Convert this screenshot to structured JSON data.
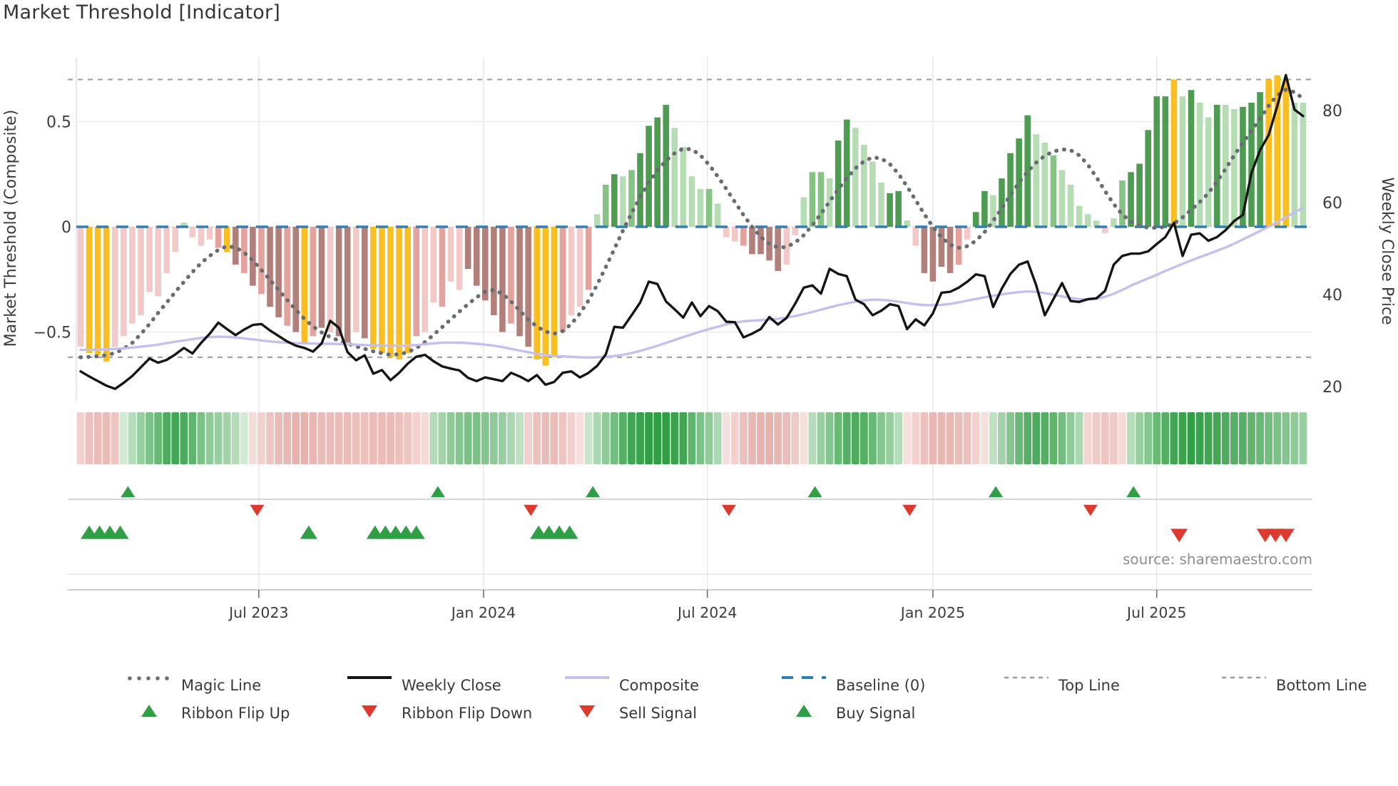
{
  "title": "Market Threshold [Indicator]",
  "source_text": "source: sharemaestro.com",
  "left_axis": {
    "label": "Market Threshold (Composite)",
    "tick_labels": [
      "0.5",
      "0",
      "−0.5"
    ],
    "tick_values": [
      0.5,
      0,
      -0.5
    ]
  },
  "right_axis": {
    "label": "Weekly Close Price",
    "tick_labels": [
      "80",
      "60",
      "40",
      "20"
    ],
    "tick_values": [
      80,
      60,
      40,
      20
    ]
  },
  "x_axis": {
    "ticks": [
      {
        "label": "Jul 2023",
        "week": 20.7
      },
      {
        "label": "Jan 2024",
        "week": 46.8
      },
      {
        "label": "Jul 2024",
        "week": 72.8
      },
      {
        "label": "Jan 2025",
        "week": 99.0
      },
      {
        "label": "Jul 2025",
        "week": 125.0
      }
    ]
  },
  "colors": {
    "bar_light_pink": "#f2c9c6",
    "bar_med_pink": "#e4a29d",
    "bar_dark_pink": "#b2807b",
    "bar_yellow": "#fbbe21",
    "bar_light_green": "#b5dcb2",
    "bar_med_green": "#85c382",
    "bar_dark_green": "#4e9b52",
    "baseline_blue": "#2d7fb8",
    "magic_gray": "#686d73",
    "composite_lavender": "#c6bfee",
    "weekly_close_black": "#151515",
    "band_gray": "#9b9b9b",
    "grid": "#ececf0",
    "vgrid": "#e4e4e8",
    "signal_green": "#2f9e44",
    "signal_red": "#dd3a2f",
    "ribbon_green_hi": "#2f9e44",
    "ribbon_green_lo": "#eef7ec",
    "ribbon_pink_hi": "#d9897f",
    "ribbon_pink_lo": "#fbefee",
    "axis_text": "#3d3d3d"
  },
  "legend": {
    "row1": [
      {
        "label": "Magic Line",
        "swatch": "dots-gray"
      },
      {
        "label": "Weekly Close",
        "swatch": "line-black"
      },
      {
        "label": "Composite",
        "swatch": "line-lavender"
      },
      {
        "label": "Baseline (0)",
        "swatch": "dash-blue"
      },
      {
        "label": "Top Line",
        "swatch": "dash-gray"
      },
      {
        "label": "Bottom Line",
        "swatch": "dash-gray"
      }
    ],
    "row2": [
      {
        "label": "Ribbon Flip Up",
        "swatch": "tri-up"
      },
      {
        "label": "Ribbon Flip Down",
        "swatch": "tri-down"
      },
      {
        "label": "Sell Signal",
        "swatch": "tri-down"
      },
      {
        "label": "Buy Signal",
        "swatch": "tri-up"
      }
    ]
  },
  "chart_data": {
    "type": "bar",
    "x_unit": "weekly index (0 = first week shown)",
    "n_weeks": 143,
    "baseline": 0,
    "top_line": 0.7,
    "bottom_line": -0.62,
    "threshold_axis_range": [
      -0.8,
      0.82
    ],
    "price_axis_range": [
      13,
      92
    ],
    "grid": "on",
    "legend_position": "bottom",
    "threshold_bars": {
      "values": [
        -0.57,
        -0.6,
        -0.61,
        -0.64,
        -0.57,
        -0.52,
        -0.46,
        -0.42,
        -0.31,
        -0.33,
        -0.22,
        -0.12,
        0.02,
        -0.05,
        -0.09,
        -0.06,
        -0.1,
        -0.12,
        -0.18,
        -0.22,
        -0.28,
        -0.32,
        -0.38,
        -0.43,
        -0.47,
        -0.5,
        -0.55,
        -0.52,
        -0.48,
        -0.5,
        -0.52,
        -0.55,
        -0.5,
        -0.53,
        -0.58,
        -0.6,
        -0.62,
        -0.63,
        -0.6,
        -0.52,
        -0.5,
        -0.36,
        -0.38,
        -0.26,
        -0.3,
        -0.2,
        -0.28,
        -0.35,
        -0.42,
        -0.5,
        -0.46,
        -0.52,
        -0.57,
        -0.63,
        -0.66,
        -0.62,
        -0.5,
        -0.42,
        -0.38,
        -0.3,
        0.06,
        0.2,
        0.25,
        0.24,
        0.27,
        0.35,
        0.48,
        0.52,
        0.58,
        0.47,
        0.38,
        0.24,
        0.18,
        0.18,
        0.11,
        -0.05,
        -0.07,
        -0.09,
        -0.13,
        -0.13,
        -0.16,
        -0.21,
        -0.18,
        -0.04,
        0.14,
        0.26,
        0.26,
        0.23,
        0.41,
        0.51,
        0.47,
        0.39,
        0.31,
        0.21,
        0.16,
        0.17,
        0.03,
        -0.09,
        -0.22,
        -0.26,
        -0.19,
        -0.22,
        -0.18,
        -0.06,
        0.07,
        0.17,
        0.15,
        0.23,
        0.35,
        0.42,
        0.53,
        0.44,
        0.4,
        0.34,
        0.27,
        0.2,
        0.1,
        0.06,
        0.03,
        -0.03,
        0.04,
        0.22,
        0.26,
        0.3,
        0.46,
        0.62,
        0.62,
        0.7,
        0.62,
        0.65,
        0.59,
        0.52,
        0.58,
        0.58,
        0.56,
        0.57,
        0.59,
        0.64,
        0.7,
        0.72,
        0.7,
        0.59,
        0.59
      ],
      "color_codes": [
        "lp",
        "y",
        "y",
        "y",
        "lp",
        "lp",
        "lp",
        "lp",
        "lp",
        "lp",
        "lp",
        "lp",
        "lg",
        "lp",
        "lp",
        "lp",
        "mp",
        "y",
        "dp",
        "mp",
        "dp",
        "mp",
        "dp",
        "dp",
        "mp",
        "dp",
        "y",
        "mp",
        "dp",
        "lp",
        "dp",
        "dp",
        "lp",
        "dp",
        "y",
        "y",
        "y",
        "y",
        "y",
        "mp",
        "lp",
        "lp",
        "mp",
        "lp",
        "lp",
        "dp",
        "dp",
        "dp",
        "dp",
        "dp",
        "mp",
        "dp",
        "dp",
        "y",
        "y",
        "y",
        "mp",
        "lp",
        "lp",
        "mp",
        "lg",
        "mg",
        "dg",
        "lg",
        "mg",
        "dg",
        "dg",
        "dg",
        "dg",
        "lg",
        "lg",
        "lg",
        "lg",
        "mg",
        "lg",
        "lp",
        "lp",
        "mp",
        "dp",
        "dp",
        "dp",
        "dp",
        "lp",
        "lp",
        "lg",
        "mg",
        "mg",
        "lg",
        "dg",
        "dg",
        "lg",
        "lg",
        "lg",
        "lg",
        "dg",
        "dg",
        "lg",
        "lp",
        "dp",
        "dp",
        "dp",
        "dp",
        "mp",
        "lp",
        "dg",
        "dg",
        "lg",
        "dg",
        "dg",
        "dg",
        "dg",
        "lg",
        "lg",
        "mg",
        "lg",
        "lg",
        "lg",
        "lg",
        "lg",
        "lp",
        "lg",
        "mg",
        "dg",
        "dg",
        "dg",
        "dg",
        "dg",
        "y",
        "lg",
        "dg",
        "lg",
        "lg",
        "dg",
        "lg",
        "lg",
        "dg",
        "dg",
        "dg",
        "y",
        "y",
        "y",
        "lg",
        "lg"
      ]
    },
    "series": [
      {
        "name": "Magic Line",
        "axis": "threshold",
        "values": [
          -0.62,
          -0.618,
          -0.615,
          -0.61,
          -0.6,
          -0.58,
          -0.552,
          -0.51,
          -0.462,
          -0.41,
          -0.36,
          -0.31,
          -0.262,
          -0.215,
          -0.172,
          -0.138,
          -0.11,
          -0.092,
          -0.098,
          -0.122,
          -0.16,
          -0.205,
          -0.252,
          -0.3,
          -0.348,
          -0.395,
          -0.438,
          -0.474,
          -0.502,
          -0.524,
          -0.541,
          -0.555,
          -0.568,
          -0.58,
          -0.592,
          -0.601,
          -0.608,
          -0.606,
          -0.596,
          -0.576,
          -0.548,
          -0.513,
          -0.477,
          -0.44,
          -0.403,
          -0.368,
          -0.335,
          -0.308,
          -0.3,
          -0.318,
          -0.355,
          -0.398,
          -0.44,
          -0.474,
          -0.498,
          -0.508,
          -0.496,
          -0.462,
          -0.412,
          -0.35,
          -0.275,
          -0.192,
          -0.105,
          -0.018,
          0.065,
          0.142,
          0.21,
          0.268,
          0.315,
          0.35,
          0.372,
          0.368,
          0.34,
          0.295,
          0.24,
          0.18,
          0.118,
          0.056,
          0.0,
          -0.048,
          -0.082,
          -0.098,
          -0.096,
          -0.075,
          -0.04,
          0.008,
          0.062,
          0.12,
          0.178,
          0.232,
          0.278,
          0.312,
          0.33,
          0.325,
          0.298,
          0.252,
          0.192,
          0.126,
          0.06,
          0.0,
          -0.05,
          -0.085,
          -0.1,
          -0.092,
          -0.066,
          -0.025,
          0.028,
          0.088,
          0.15,
          0.21,
          0.262,
          0.305,
          0.338,
          0.358,
          0.368,
          0.364,
          0.34,
          0.295,
          0.235,
          0.17,
          0.108,
          0.058,
          0.025,
          0.005,
          -0.004,
          -0.005,
          0.0,
          0.015,
          0.045,
          0.08,
          0.118,
          0.16,
          0.215,
          0.275,
          0.34,
          0.4,
          0.455,
          0.515,
          0.575,
          0.625,
          0.652,
          0.64,
          0.61
        ]
      },
      {
        "name": "Composite",
        "axis": "threshold",
        "values": [
          -0.585,
          -0.585,
          -0.584,
          -0.582,
          -0.58,
          -0.578,
          -0.574,
          -0.57,
          -0.565,
          -0.56,
          -0.553,
          -0.546,
          -0.54,
          -0.534,
          -0.528,
          -0.524,
          -0.522,
          -0.523,
          -0.526,
          -0.53,
          -0.535,
          -0.54,
          -0.545,
          -0.548,
          -0.551,
          -0.553,
          -0.554,
          -0.555,
          -0.556,
          -0.556,
          -0.557,
          -0.558,
          -0.56,
          -0.562,
          -0.563,
          -0.564,
          -0.565,
          -0.565,
          -0.564,
          -0.562,
          -0.558,
          -0.554,
          -0.551,
          -0.55,
          -0.551,
          -0.553,
          -0.556,
          -0.56,
          -0.565,
          -0.572,
          -0.58,
          -0.588,
          -0.596,
          -0.603,
          -0.609,
          -0.613,
          -0.616,
          -0.618,
          -0.62,
          -0.621,
          -0.62,
          -0.618,
          -0.614,
          -0.608,
          -0.6,
          -0.59,
          -0.578,
          -0.565,
          -0.552,
          -0.538,
          -0.524,
          -0.511,
          -0.498,
          -0.486,
          -0.475,
          -0.464,
          -0.455,
          -0.449,
          -0.446,
          -0.444,
          -0.441,
          -0.437,
          -0.431,
          -0.424,
          -0.415,
          -0.405,
          -0.394,
          -0.383,
          -0.373,
          -0.364,
          -0.356,
          -0.35,
          -0.346,
          -0.347,
          -0.35,
          -0.356,
          -0.362,
          -0.368,
          -0.372,
          -0.373,
          -0.371,
          -0.366,
          -0.359,
          -0.351,
          -0.343,
          -0.335,
          -0.328,
          -0.321,
          -0.315,
          -0.31,
          -0.307,
          -0.309,
          -0.315,
          -0.323,
          -0.331,
          -0.338,
          -0.343,
          -0.345,
          -0.342,
          -0.333,
          -0.318,
          -0.3,
          -0.28,
          -0.262,
          -0.245,
          -0.228,
          -0.21,
          -0.193,
          -0.176,
          -0.16,
          -0.144,
          -0.129,
          -0.114,
          -0.098,
          -0.08,
          -0.06,
          -0.04,
          -0.02,
          0.0,
          0.022,
          0.046,
          0.068,
          0.09
        ]
      },
      {
        "name": "Weekly Close",
        "axis": "price",
        "values": [
          23.3,
          22.2,
          21.2,
          20.2,
          19.5,
          20.8,
          22.3,
          24.2,
          26.1,
          25.2,
          25.8,
          27.0,
          28.4,
          27.2,
          29.5,
          31.5,
          33.9,
          32.5,
          31.2,
          32.4,
          33.4,
          33.6,
          32.2,
          31.0,
          29.8,
          28.9,
          28.4,
          27.6,
          29.4,
          34.3,
          32.8,
          27.5,
          25.7,
          26.8,
          22.8,
          23.6,
          21.4,
          23.0,
          25.0,
          26.5,
          26.9,
          25.5,
          24.4,
          23.9,
          23.5,
          21.9,
          21.2,
          22.0,
          21.6,
          21.2,
          23.0,
          22.2,
          21.2,
          22.5,
          20.4,
          21.0,
          23.0,
          23.3,
          22.0,
          23.0,
          24.5,
          27.0,
          33.0,
          32.8,
          35.5,
          38.3,
          42.8,
          42.3,
          38.5,
          36.8,
          35.0,
          38.3,
          35.3,
          37.5,
          36.4,
          34.1,
          34.0,
          30.7,
          31.5,
          32.5,
          35.1,
          33.5,
          34.9,
          38.0,
          41.5,
          42.0,
          40.2,
          45.6,
          44.5,
          44.0,
          38.9,
          37.9,
          35.5,
          36.5,
          37.9,
          37.5,
          32.5,
          34.6,
          33.3,
          35.9,
          40.4,
          40.6,
          41.5,
          42.8,
          44.4,
          44.0,
          37.3,
          41.3,
          44.5,
          46.5,
          47.2,
          42.0,
          35.5,
          39.0,
          42.5,
          38.6,
          38.4,
          39.0,
          39.2,
          40.8,
          46.5,
          48.4,
          48.9,
          48.9,
          49.4,
          51.0,
          52.5,
          55.6,
          48.4,
          53.0,
          53.3,
          51.7,
          52.5,
          54.0,
          56.0,
          57.3,
          66.4,
          71.4,
          74.7,
          81.0,
          87.7,
          80.2,
          78.8
        ]
      }
    ],
    "ribbon": [
      -0.3,
      -0.45,
      -0.5,
      -0.5,
      -0.4,
      0.15,
      0.3,
      0.45,
      0.6,
      0.7,
      0.85,
      0.9,
      0.85,
      0.75,
      0.6,
      0.5,
      0.45,
      0.4,
      0.3,
      0.15,
      -0.2,
      -0.3,
      -0.4,
      -0.5,
      -0.55,
      -0.6,
      -0.6,
      -0.55,
      -0.5,
      -0.5,
      -0.5,
      -0.5,
      -0.45,
      -0.45,
      -0.5,
      -0.5,
      -0.5,
      -0.45,
      -0.4,
      -0.3,
      -0.2,
      0.3,
      0.4,
      0.5,
      0.55,
      0.6,
      0.6,
      0.55,
      0.5,
      0.45,
      0.35,
      0.25,
      -0.3,
      -0.45,
      -0.5,
      -0.5,
      -0.4,
      -0.3,
      -0.15,
      0.2,
      0.35,
      0.5,
      0.65,
      0.8,
      0.9,
      0.95,
      1.0,
      1.0,
      1.0,
      0.95,
      0.9,
      0.75,
      0.6,
      0.5,
      0.35,
      -0.15,
      -0.3,
      -0.45,
      -0.55,
      -0.6,
      -0.6,
      -0.55,
      -0.5,
      -0.35,
      -0.15,
      0.3,
      0.45,
      0.55,
      0.7,
      0.8,
      0.85,
      0.8,
      0.7,
      0.55,
      0.45,
      0.3,
      -0.15,
      -0.3,
      -0.45,
      -0.55,
      -0.55,
      -0.55,
      -0.5,
      -0.45,
      -0.3,
      -0.15,
      0.25,
      0.4,
      0.55,
      0.7,
      0.8,
      0.85,
      0.8,
      0.75,
      0.65,
      0.5,
      0.35,
      -0.25,
      -0.35,
      -0.4,
      -0.35,
      -0.2,
      0.3,
      0.45,
      0.55,
      0.7,
      0.8,
      0.9,
      0.95,
      1.0,
      0.95,
      0.9,
      0.9,
      0.85,
      0.8,
      0.8,
      0.75,
      0.7,
      0.65,
      0.6,
      0.55,
      0.5,
      0.45
    ],
    "signals": {
      "ribbon_flip_up_weeks": [
        5.5,
        41.5,
        59.5,
        85.3,
        106.3,
        122.3
      ],
      "ribbon_flip_down_weeks": [
        20.5,
        52.3,
        75.3,
        96.3,
        117.3
      ],
      "buy_signal_weeks": [
        1.0,
        2.2,
        3.4,
        4.6,
        26.5,
        34.2,
        35.4,
        36.6,
        37.8,
        39.0,
        53.2,
        54.4,
        55.6,
        56.8
      ],
      "sell_signal_weeks": [
        127.6,
        137.6,
        138.8,
        140.0
      ]
    }
  }
}
